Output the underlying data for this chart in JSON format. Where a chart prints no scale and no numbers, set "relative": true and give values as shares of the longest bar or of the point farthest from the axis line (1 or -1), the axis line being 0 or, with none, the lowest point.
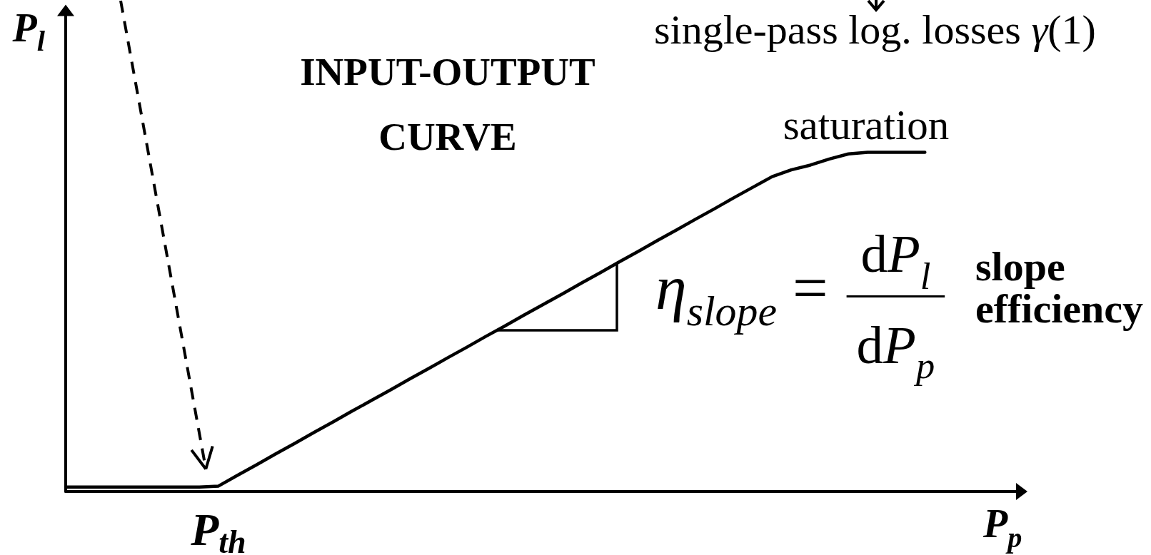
{
  "chart_data": {
    "type": "line",
    "title": "INPUT-OUTPUT CURVE",
    "xlabel": "P$_{p}$",
    "ylabel": "P$_{l}$",
    "categories": [
      null,
      null,
      null,
      null,
      null,
      null,
      null,
      null,
      null,
      null,
      null,
      null,
      null,
      null,
      null,
      null,
      null,
      null,
      null,
      null,
      null,
      null,
      null,
      null,
      null,
      null,
      null,
      null,
      null,
      null,
      null,
      null,
      null,
      null,
      null,
      null,
      null,
      null,
      null,
      null,
      null,
      null,
      null,
      null,
      null,
      null,
      null,
      null,
      null,
      null,
      null
    ],
    "values": [
      0.013,
      0.013,
      0.013,
      0.013,
      0.013,
      0.013,
      0.013,
      0.013,
      0.016,
      0.048,
      0.079,
      0.111,
      0.142,
      0.174,
      0.205,
      0.237,
      0.268,
      0.299,
      0.331,
      0.362,
      0.394,
      0.425,
      0.457,
      0.488,
      0.52,
      0.551,
      0.582,
      0.614,
      0.645,
      0.677,
      0.708,
      0.74,
      0.771,
      0.803,
      0.834,
      0.866,
      0.897,
      0.928,
      0.948,
      0.962,
      0.98,
      0.995,
      1,
      1,
      1,
      1,
      null,
      null,
      null,
      null,
      null
    ],
    "color": "#000000",
    "relative": true,
    "marker": "none",
    "line_style": "solid",
    "annotations": [
      "single-pass log. losses γ(1)",
      "saturation",
      "η$_{slope}$ =",
      "dP$_{l}$",
      "dP$_{p}$",
      "slope efficiency",
      "P$_{th}$"
    ]
  }
}
